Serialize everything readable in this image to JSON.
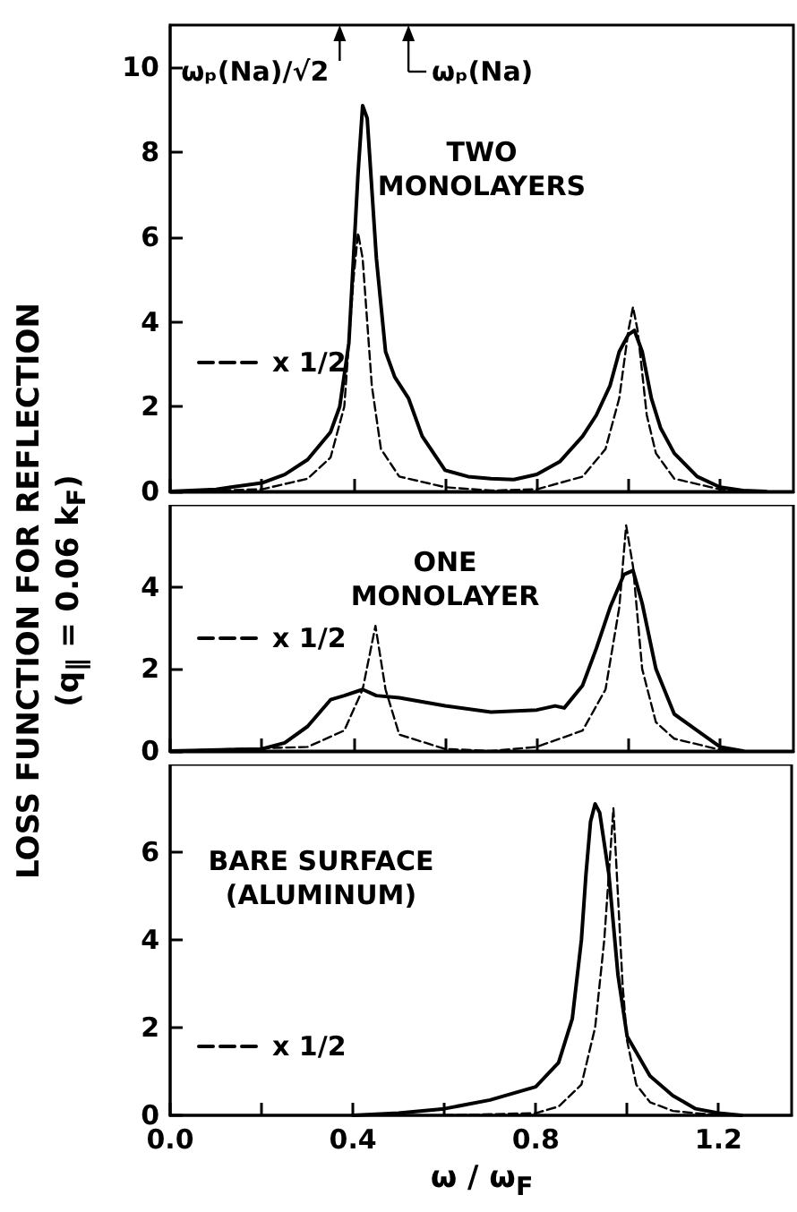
{
  "chart_data": [
    {
      "type": "line",
      "xlim": [
        0,
        1.36
      ],
      "ylim": [
        0,
        11
      ],
      "xticks": [
        0,
        0.2,
        0.4,
        0.6,
        0.8,
        1,
        1.2
      ],
      "yticks": [
        0,
        2,
        4,
        6,
        8,
        10
      ],
      "tick_labels": "y",
      "legend": "left",
      "annotations": [
        "TWO\nMONOLAYERS",
        "ωₚ(Na)/√2",
        "ωₚ(Na)"
      ],
      "series": [
        {
          "color": "#000000",
          "line_style": "solid",
          "x": [
            0,
            0.1,
            0.2,
            0.25,
            0.3,
            0.35,
            0.37,
            0.39,
            0.41,
            0.42,
            0.43,
            0.45,
            0.47,
            0.49,
            0.52,
            0.55,
            0.6,
            0.65,
            0.7,
            0.75,
            0.8,
            0.85,
            0.9,
            0.93,
            0.96,
            0.98,
            1.0,
            1.013,
            1.03,
            1.05,
            1.07,
            1.1,
            1.15,
            1.2,
            1.25,
            1.3
          ],
          "values": [
            0,
            0.05,
            0.2,
            0.4,
            0.75,
            1.4,
            2,
            3.5,
            7.5,
            9.1,
            8.8,
            5.5,
            3.3,
            2.7,
            2.2,
            1.3,
            0.5,
            0.35,
            0.3,
            0.28,
            0.4,
            0.7,
            1.3,
            1.8,
            2.5,
            3.3,
            3.7,
            3.8,
            3.3,
            2.2,
            1.5,
            0.9,
            0.35,
            0.1,
            0.02,
            0
          ]
        },
        {
          "name": "x 1/2",
          "color": "#000000",
          "line_style": "dashed",
          "x": [
            0,
            0.2,
            0.3,
            0.35,
            0.38,
            0.4,
            0.41,
            0.42,
            0.44,
            0.46,
            0.5,
            0.6,
            0.7,
            0.8,
            0.9,
            0.95,
            0.98,
            1.0,
            1.01,
            1.02,
            1.04,
            1.06,
            1.1,
            1.2,
            1.3
          ],
          "values": [
            0,
            0.05,
            0.3,
            0.8,
            2,
            5,
            6.1,
            5.5,
            2.5,
            1,
            0.35,
            0.1,
            0.02,
            0.05,
            0.35,
            1,
            2.2,
            3.8,
            4.35,
            3.8,
            1.8,
            0.9,
            0.3,
            0.05,
            0
          ]
        }
      ]
    },
    {
      "type": "line",
      "xlim": [
        0,
        1.36
      ],
      "ylim": [
        0,
        6
      ],
      "xticks": [
        0,
        0.2,
        0.4,
        0.6,
        0.8,
        1,
        1.2
      ],
      "yticks": [
        0,
        2,
        4
      ],
      "tick_labels": "y",
      "legend": "left",
      "ylabel": "LOSS FUNCTION FOR REFLECTION\n(q$_{∥}$ = 0.06 k$_{F}$)",
      "annotations": [
        "ONE\nMONOLAYER"
      ],
      "series": [
        {
          "color": "#000000",
          "line_style": "solid",
          "x": [
            0,
            0.2,
            0.25,
            0.3,
            0.35,
            0.38,
            0.42,
            0.45,
            0.5,
            0.55,
            0.6,
            0.7,
            0.8,
            0.84,
            0.86,
            0.9,
            0.93,
            0.96,
            0.99,
            1.01,
            1.03,
            1.06,
            1.1,
            1.15,
            1.2,
            1.25
          ],
          "values": [
            0,
            0.05,
            0.2,
            0.6,
            1.25,
            1.35,
            1.5,
            1.35,
            1.3,
            1.2,
            1.1,
            0.95,
            1.0,
            1.1,
            1.05,
            1.6,
            2.5,
            3.5,
            4.3,
            4.4,
            3.6,
            2.0,
            0.9,
            0.5,
            0.1,
            0
          ]
        },
        {
          "name": "x 1/2",
          "color": "#000000",
          "line_style": "dashed",
          "x": [
            0,
            0.3,
            0.38,
            0.42,
            0.448,
            0.47,
            0.5,
            0.6,
            0.7,
            0.8,
            0.9,
            0.95,
            0.98,
            0.995,
            1.01,
            1.03,
            1.06,
            1.1,
            1.2,
            1.25
          ],
          "values": [
            0,
            0.1,
            0.5,
            1.5,
            3.05,
            1.5,
            0.4,
            0.05,
            0,
            0.1,
            0.5,
            1.5,
            3.5,
            5.5,
            4.5,
            2,
            0.7,
            0.3,
            0.03,
            0
          ]
        }
      ]
    },
    {
      "type": "line",
      "xlim": [
        0,
        1.36
      ],
      "ylim": [
        0,
        8
      ],
      "xticks": [
        {
          "value": 0,
          "label": "0.0"
        },
        {
          "value": 0.2,
          "label": null
        },
        0.4,
        {
          "value": 0.6,
          "label": null
        },
        0.8,
        {
          "value": 1,
          "label": null
        },
        1.2
      ],
      "yticks": [
        0,
        2,
        4,
        6
      ],
      "legend": "bottom left",
      "xlabel": "ω / ω$_{F}$",
      "annotations": [
        "BARE SURFACE\n(ALUMINUM)"
      ],
      "series": [
        {
          "color": "#000000",
          "line_style": "solid",
          "x": [
            0.4,
            0.5,
            0.6,
            0.7,
            0.8,
            0.85,
            0.88,
            0.9,
            0.91,
            0.92,
            0.93,
            0.94,
            0.96,
            0.98,
            1.0,
            1.05,
            1.1,
            1.15,
            1.2,
            1.25
          ],
          "values": [
            0,
            0.05,
            0.15,
            0.35,
            0.65,
            1.2,
            2.2,
            4,
            5.5,
            6.7,
            7.1,
            6.9,
            5.5,
            3.2,
            1.8,
            0.9,
            0.45,
            0.15,
            0.05,
            0
          ]
        },
        {
          "name": "x 1/2",
          "color": "#000000",
          "line_style": "dashed",
          "x": [
            0.6,
            0.8,
            0.85,
            0.9,
            0.93,
            0.95,
            0.96,
            0.97,
            0.98,
            0.99,
            1.0,
            1.02,
            1.05,
            1.1,
            1.2
          ],
          "values": [
            0,
            0.05,
            0.2,
            0.7,
            2,
            4,
            5.5,
            7,
            5,
            3,
            1.7,
            0.7,
            0.3,
            0.1,
            0
          ]
        }
      ]
    }
  ]
}
